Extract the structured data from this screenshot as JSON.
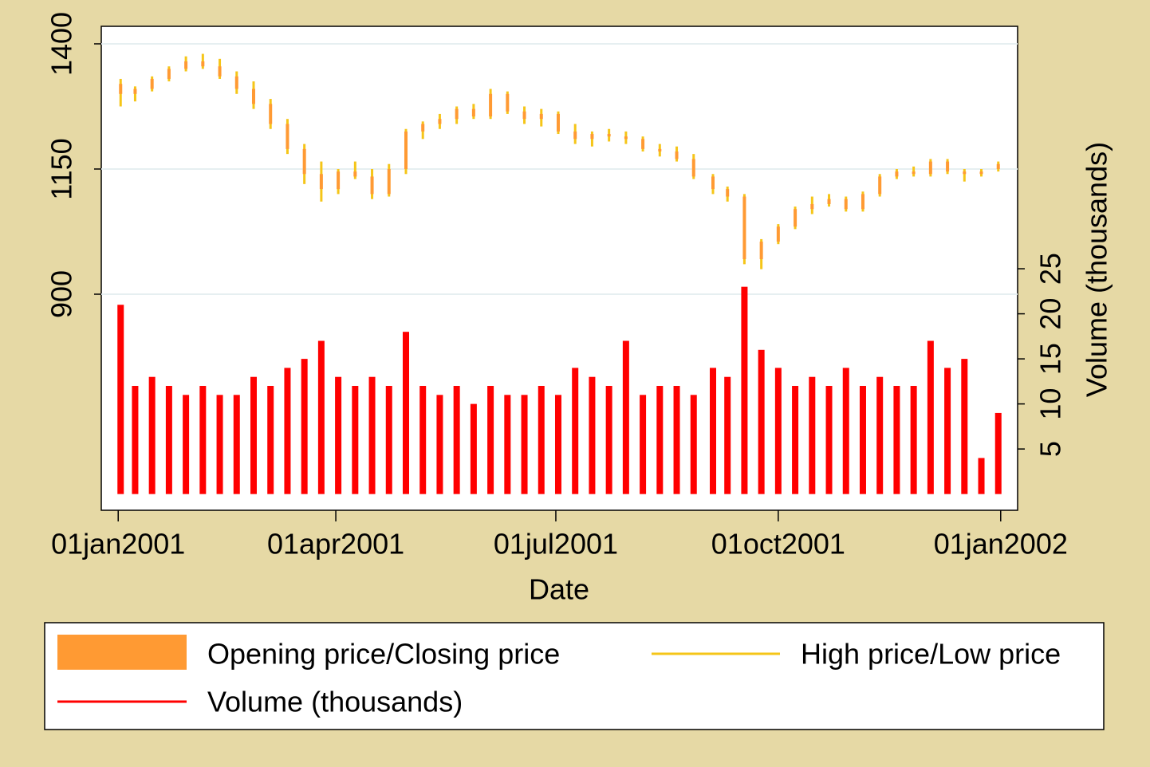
{
  "chart_data": {
    "type": "candlestick",
    "x_label": "Date",
    "y2_label": "Volume (thousands)",
    "x": [
      "2001-01-02",
      "2001-01-08",
      "2001-01-15",
      "2001-01-22",
      "2001-01-29",
      "2001-02-05",
      "2001-02-12",
      "2001-02-19",
      "2001-02-26",
      "2001-03-05",
      "2001-03-12",
      "2001-03-19",
      "2001-03-26",
      "2001-04-02",
      "2001-04-09",
      "2001-04-16",
      "2001-04-23",
      "2001-04-30",
      "2001-05-07",
      "2001-05-14",
      "2001-05-21",
      "2001-05-28",
      "2001-06-04",
      "2001-06-11",
      "2001-06-18",
      "2001-06-25",
      "2001-07-02",
      "2001-07-09",
      "2001-07-16",
      "2001-07-23",
      "2001-07-30",
      "2001-08-06",
      "2001-08-13",
      "2001-08-20",
      "2001-08-27",
      "2001-09-04",
      "2001-09-10",
      "2001-09-17",
      "2001-09-24",
      "2001-10-01",
      "2001-10-08",
      "2001-10-15",
      "2001-10-22",
      "2001-10-29",
      "2001-11-05",
      "2001-11-12",
      "2001-11-19",
      "2001-11-26",
      "2001-12-03",
      "2001-12-10",
      "2001-12-17",
      "2001-12-24",
      "2001-12-31"
    ],
    "series": [
      {
        "name": "Opening price/Closing price",
        "color": "#ff9a33",
        "open": [
          1320,
          1300,
          1310,
          1330,
          1350,
          1365,
          1355,
          1335,
          1310,
          1280,
          1240,
          1190,
          1140,
          1110,
          1145,
          1135,
          1100,
          1150,
          1225,
          1240,
          1250,
          1270,
          1255,
          1300,
          1265,
          1250,
          1260,
          1225,
          1210,
          1220,
          1215,
          1210,
          1190,
          1185,
          1170,
          1135,
          1110,
          1095,
          970,
          1005,
          1035,
          1070,
          1080,
          1090,
          1070,
          1100,
          1135,
          1145,
          1140,
          1165,
          1145,
          1140,
          1150
        ],
        "close": [
          1300,
          1310,
          1330,
          1350,
          1365,
          1355,
          1335,
          1310,
          1280,
          1240,
          1190,
          1140,
          1110,
          1145,
          1135,
          1100,
          1150,
          1225,
          1240,
          1250,
          1270,
          1255,
          1300,
          1265,
          1250,
          1260,
          1225,
          1210,
          1220,
          1215,
          1210,
          1190,
          1185,
          1170,
          1135,
          1110,
          1095,
          970,
          1005,
          1035,
          1070,
          1080,
          1090,
          1070,
          1100,
          1135,
          1145,
          1140,
          1165,
          1145,
          1140,
          1145,
          1160
        ]
      },
      {
        "name": "High price/Low price",
        "color": "#f5c518",
        "high": [
          1330,
          1315,
          1335,
          1355,
          1375,
          1380,
          1370,
          1345,
          1325,
          1290,
          1250,
          1200,
          1165,
          1150,
          1165,
          1150,
          1160,
          1230,
          1245,
          1260,
          1275,
          1280,
          1310,
          1305,
          1275,
          1270,
          1265,
          1240,
          1225,
          1230,
          1225,
          1215,
          1200,
          1195,
          1180,
          1140,
          1115,
          1100,
          1010,
          1040,
          1075,
          1095,
          1100,
          1095,
          1105,
          1140,
          1150,
          1155,
          1170,
          1170,
          1150,
          1150,
          1165
        ],
        "low": [
          1275,
          1285,
          1305,
          1325,
          1345,
          1350,
          1330,
          1300,
          1270,
          1230,
          1180,
          1120,
          1085,
          1100,
          1130,
          1090,
          1095,
          1140,
          1210,
          1230,
          1240,
          1250,
          1250,
          1260,
          1240,
          1235,
          1220,
          1200,
          1195,
          1205,
          1200,
          1185,
          1175,
          1165,
          1130,
          1100,
          1085,
          960,
          950,
          1000,
          1030,
          1060,
          1075,
          1065,
          1065,
          1095,
          1130,
          1135,
          1135,
          1140,
          1125,
          1135,
          1145
        ]
      },
      {
        "name": "Volume (thousands)",
        "color": "#ff0000",
        "axis": "y2",
        "values": [
          21,
          12,
          13,
          12,
          11,
          12,
          11,
          11,
          13,
          12,
          14,
          15,
          17,
          13,
          12,
          13,
          12,
          18,
          12,
          11,
          12,
          10,
          12,
          11,
          11,
          12,
          11,
          14,
          13,
          12,
          17,
          11,
          12,
          12,
          11,
          14,
          13,
          23,
          16,
          14,
          12,
          13,
          12,
          14,
          12,
          13,
          12,
          12,
          17,
          14,
          15,
          4,
          9
        ]
      }
    ],
    "xlim": [
      "2000-12-25",
      "2002-01-08"
    ],
    "xticks": [
      {
        "value": "2001-01-01",
        "label": "01jan2001"
      },
      {
        "value": "2001-04-01",
        "label": "01apr2001"
      },
      {
        "value": "2001-07-01",
        "label": "01jul2001"
      },
      {
        "value": "2001-10-01",
        "label": "01oct2001"
      },
      {
        "value": "2002-01-01",
        "label": "01jan2002"
      }
    ],
    "ylim": [
      468.5,
      1435
    ],
    "yticks": [
      900,
      1150,
      1400
    ],
    "y2lim": [
      -1.8,
      51.9
    ],
    "y2ticks": [
      5,
      10,
      15,
      20,
      25
    ],
    "grid": true
  }
}
